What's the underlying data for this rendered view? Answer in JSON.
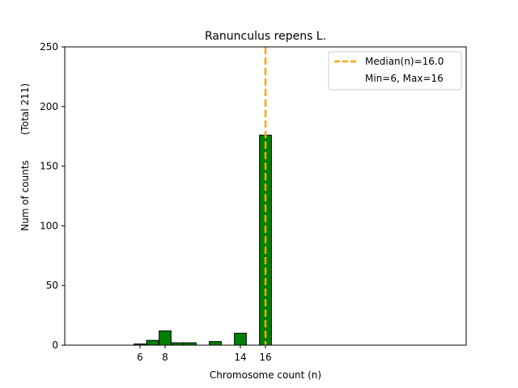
{
  "chart_data": {
    "type": "bar",
    "title": "Ranunculus repens L.",
    "xlabel": "Chromosome count (n)",
    "ylabel": "Num of counts",
    "ylabel_total": "(Total 211)",
    "xlim": [
      0,
      32
    ],
    "ylim": [
      0,
      250
    ],
    "x_ticks": [
      6,
      8,
      14,
      16
    ],
    "y_ticks": [
      0,
      50,
      100,
      150,
      200,
      250
    ],
    "bars": [
      {
        "x": 6,
        "value": 1
      },
      {
        "x": 7,
        "value": 4
      },
      {
        "x": 8,
        "value": 12
      },
      {
        "x": 9,
        "value": 2
      },
      {
        "x": 10,
        "value": 2
      },
      {
        "x": 12,
        "value": 3
      },
      {
        "x": 14,
        "value": 10
      },
      {
        "x": 16,
        "value": 176
      },
      {
        "x": 17,
        "value": 0
      },
      {
        "x": 18,
        "value": 0
      }
    ],
    "bar_color": "#008000",
    "median": 16.0,
    "median_color": "#FFA500",
    "legend": {
      "position": "top-right",
      "median_label": "Median(n)=16.0",
      "range_label": "Min=6, Max=16"
    },
    "grid": false
  }
}
